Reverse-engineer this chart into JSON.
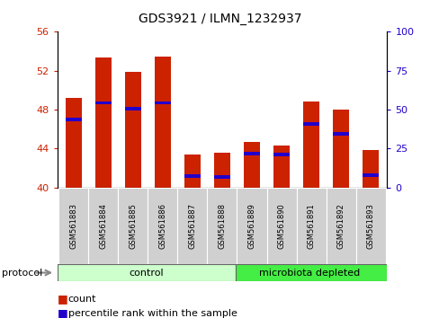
{
  "title": "GDS3921 / ILMN_1232937",
  "samples": [
    "GSM561883",
    "GSM561884",
    "GSM561885",
    "GSM561886",
    "GSM561887",
    "GSM561888",
    "GSM561889",
    "GSM561890",
    "GSM561891",
    "GSM561892",
    "GSM561893"
  ],
  "count_values": [
    49.2,
    53.4,
    51.9,
    53.5,
    43.4,
    43.6,
    44.7,
    44.3,
    48.8,
    48.0,
    43.9
  ],
  "percentile_values": [
    47.0,
    48.7,
    48.1,
    48.7,
    41.2,
    41.1,
    43.5,
    43.4,
    46.5,
    45.5,
    41.3
  ],
  "ymin": 40,
  "ymax": 56,
  "yticks": [
    40,
    44,
    48,
    52,
    56
  ],
  "right_yticks": [
    0,
    25,
    50,
    75,
    100
  ],
  "bar_color": "#cc2200",
  "percentile_color": "#2200cc",
  "control_samples": 6,
  "control_label": "control",
  "microbiota_label": "microbiota depleted",
  "control_color": "#ccffcc",
  "microbiota_color": "#44ee44",
  "protocol_label": "protocol",
  "legend_count": "count",
  "legend_percentile": "percentile rank within the sample",
  "bar_width": 0.55,
  "figure_bg": "#ffffff",
  "axes_bg": "#ffffff"
}
